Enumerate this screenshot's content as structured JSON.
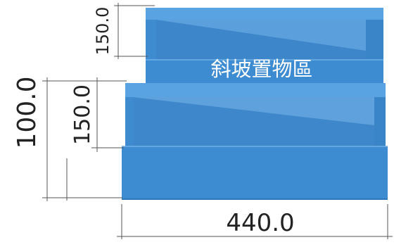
{
  "dimensions": {
    "top_box_height": "150.0",
    "bottom_box_height": "150.0",
    "total_height": "100.0",
    "width": "440.0"
  },
  "label": "斜坡置物區",
  "colors": {
    "box_front": "#3d8bd0",
    "box_rim": "#5aa3e2",
    "box_inner": "#4a92d4",
    "box_shadow": "#2e76b8",
    "dim_line": "#555555",
    "dim_text": "#222222",
    "label_text": "#ffffff"
  }
}
